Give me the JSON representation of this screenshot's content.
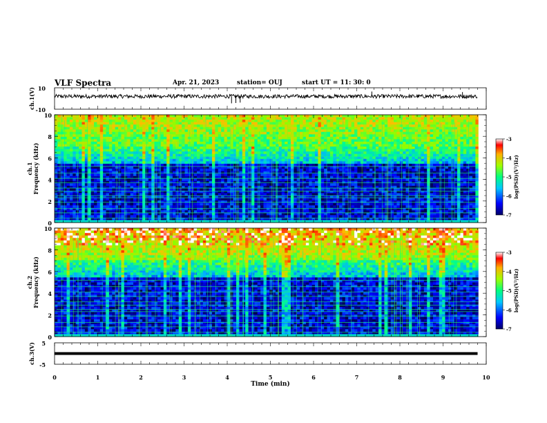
{
  "header": {
    "title": "VLF Spectra",
    "date": "Apr. 21, 2023",
    "station": "station= OUJ",
    "start": "start  UT =   11: 30: 0"
  },
  "chart_data": [
    {
      "id": "ch1_waveform",
      "type": "line",
      "ylabel": "ch.1(V)",
      "yticks": [
        "10",
        "-10"
      ],
      "ylim": [
        -10,
        10
      ],
      "xlim": [
        0,
        10
      ],
      "baseline": 2,
      "noise_amplitude": 1,
      "spikes": [
        {
          "x": 4.1,
          "y": -4.5
        },
        {
          "x": 4.2,
          "y": -4.2
        },
        {
          "x": 4.3,
          "y": -3.8
        },
        {
          "x": 7.35,
          "y": 6.5
        },
        {
          "x": 9.45,
          "y": 6.0
        }
      ]
    },
    {
      "id": "ch1_spectrogram",
      "type": "heatmap",
      "ylabel": "Frequency (kHz)",
      "channel_label": "ch.1",
      "yticks": [
        "0",
        "2",
        "4",
        "6",
        "8",
        "10"
      ],
      "ylim": [
        0,
        10
      ],
      "xlim": [
        0,
        10
      ],
      "colorbar": {
        "label": "log(PSD)(V²/Hz)",
        "ticks": [
          "-3",
          "-4",
          "-5",
          "-6",
          "-7"
        ],
        "range": [
          -7,
          -3
        ]
      }
    },
    {
      "id": "ch2_spectrogram",
      "type": "heatmap",
      "ylabel": "Frequency (kHz)",
      "channel_label": "ch.2",
      "yticks": [
        "0",
        "2",
        "4",
        "6",
        "8",
        "10"
      ],
      "ylim": [
        0,
        10
      ],
      "xlim": [
        0,
        10
      ],
      "colorbar": {
        "label": "log(PSD)(V²/Hz)",
        "ticks": [
          "-3",
          "-4",
          "-5",
          "-6",
          "-7"
        ],
        "range": [
          -7,
          -3
        ]
      }
    },
    {
      "id": "ch3_waveform",
      "type": "line",
      "ylabel": "ch.3(V)",
      "yticks": [
        "5",
        "-5"
      ],
      "ylim": [
        -5,
        5
      ],
      "xlim": [
        0,
        10
      ],
      "baseline": 0
    }
  ],
  "xaxis": {
    "label": "Time (min)",
    "ticks": [
      "0",
      "1",
      "2",
      "3",
      "4",
      "5",
      "6",
      "7",
      "8",
      "9",
      "10"
    ],
    "range": [
      0,
      10
    ]
  },
  "colors": {
    "trace": "#000000",
    "background": "#ffffff"
  }
}
